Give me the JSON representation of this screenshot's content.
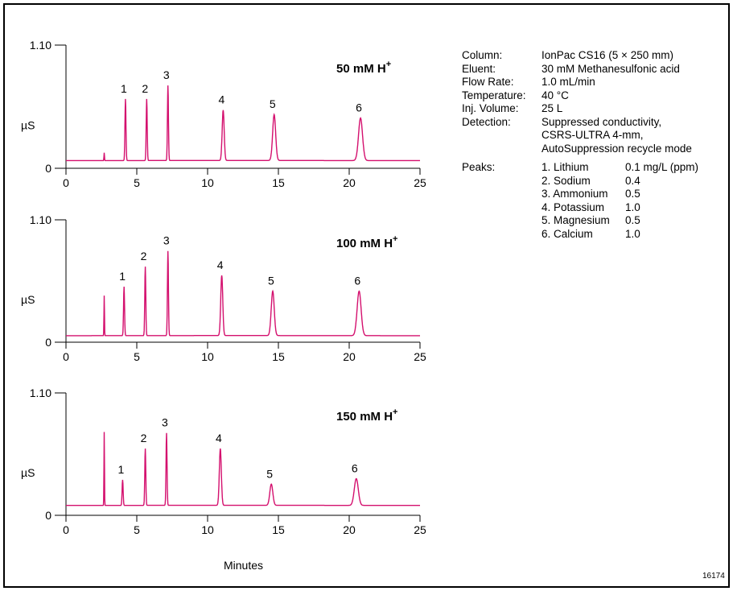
{
  "chart_data": [
    {
      "type": "line",
      "condition_label": "50 mM H",
      "condition_sup": "+",
      "xlim": [
        0,
        25
      ],
      "ylim": [
        0,
        1.1
      ],
      "xticks": [
        0,
        5,
        10,
        15,
        20,
        25
      ],
      "ytick_labels": [
        "0",
        "1.10"
      ],
      "ylabel": "µS",
      "color": "#d4106e",
      "baseline": 0.07,
      "system_peak": {
        "t": 2.7,
        "h": 0.07
      },
      "peaks": [
        {
          "label": "1",
          "t": 4.2,
          "height": 0.62
        },
        {
          "label": "2",
          "t": 5.7,
          "height": 0.62
        },
        {
          "label": "3",
          "t": 7.2,
          "height": 0.74
        },
        {
          "label": "4",
          "t": 11.1,
          "height": 0.52
        },
        {
          "label": "5",
          "t": 14.7,
          "height": 0.48
        },
        {
          "label": "6",
          "t": 20.8,
          "height": 0.45
        }
      ]
    },
    {
      "type": "line",
      "condition_label": "100 mM H",
      "condition_sup": "+",
      "xlim": [
        0,
        25
      ],
      "ylim": [
        0,
        1.1
      ],
      "xticks": [
        0,
        5,
        10,
        15,
        20,
        25
      ],
      "ytick_labels": [
        "0",
        "1.10"
      ],
      "ylabel": "µS",
      "color": "#d4106e",
      "baseline": 0.06,
      "system_peak": {
        "t": 2.7,
        "h": 0.36
      },
      "peaks": [
        {
          "label": "1",
          "t": 4.1,
          "height": 0.5
        },
        {
          "label": "2",
          "t": 5.6,
          "height": 0.68
        },
        {
          "label": "3",
          "t": 7.2,
          "height": 0.82
        },
        {
          "label": "4",
          "t": 11.0,
          "height": 0.6
        },
        {
          "label": "5",
          "t": 14.6,
          "height": 0.46
        },
        {
          "label": "6",
          "t": 20.7,
          "height": 0.46
        }
      ]
    },
    {
      "type": "line",
      "condition_label": "150 mM H",
      "condition_sup": "+",
      "xlim": [
        0,
        25
      ],
      "ylim": [
        0,
        1.1
      ],
      "xticks": [
        0,
        5,
        10,
        15,
        20,
        25
      ],
      "ytick_labels": [
        "0",
        "1.10"
      ],
      "ylabel": "µS",
      "color": "#d4106e",
      "baseline": 0.09,
      "system_peak": {
        "t": 2.7,
        "h": 0.66
      },
      "peaks": [
        {
          "label": "1",
          "t": 4.0,
          "height": 0.32
        },
        {
          "label": "2",
          "t": 5.6,
          "height": 0.6
        },
        {
          "label": "3",
          "t": 7.1,
          "height": 0.74
        },
        {
          "label": "4",
          "t": 10.9,
          "height": 0.6
        },
        {
          "label": "5",
          "t": 14.5,
          "height": 0.28
        },
        {
          "label": "6",
          "t": 20.5,
          "height": 0.33
        }
      ]
    }
  ],
  "xlabel": "Minutes",
  "conditions": [
    {
      "label": "Column:",
      "value": "IonPac CS16 (5 × 250 mm)"
    },
    {
      "label": "Eluent:",
      "value": "30 mM Methanesulfonic acid"
    },
    {
      "label": "Flow Rate:",
      "value": "1.0 mL/min"
    },
    {
      "label": "Temperature:",
      "value": "40 °C"
    },
    {
      "label": "Inj. Volume:",
      "value": "25 L"
    },
    {
      "label": "Detection:",
      "value": "Suppressed conductivity,"
    },
    {
      "label": "",
      "value": "CSRS-ULTRA  4-mm,"
    },
    {
      "label": "",
      "value": "AutoSuppression recycle mode"
    }
  ],
  "peaks_label": "Peaks:",
  "peak_list": [
    {
      "name": "1. Lithium",
      "conc": "0.1 mg/L (ppm)"
    },
    {
      "name": "2. Sodium",
      "conc": "0.4"
    },
    {
      "name": "3. Ammonium",
      "conc": "0.5"
    },
    {
      "name": "4. Potassium",
      "conc": "1.0"
    },
    {
      "name": "5. Magnesium",
      "conc": "0.5"
    },
    {
      "name": "6. Calcium",
      "conc": "1.0"
    }
  ],
  "figure_number": "16174"
}
